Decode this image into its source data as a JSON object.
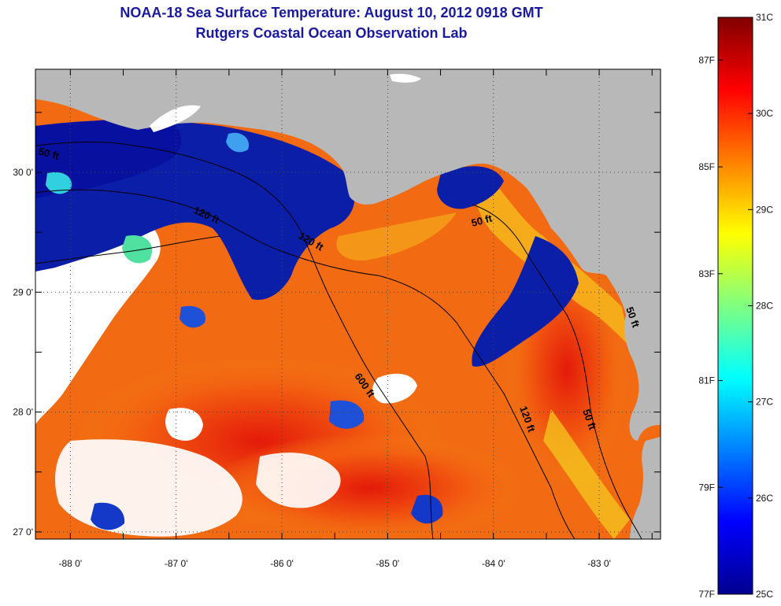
{
  "titles": {
    "line1": "NOAA-18 Sea Surface Temperature:  August 10, 2012 0918 GMT",
    "line2": "Rutgers Coastal Ocean Observation Lab"
  },
  "map": {
    "lon_range": [
      -88.33,
      -82.42
    ],
    "lat_range": [
      26.94,
      30.86
    ],
    "lon_ticks": [
      {
        "value": -88,
        "label": "-88 0'"
      },
      {
        "value": -87,
        "label": "-87 0'"
      },
      {
        "value": -86,
        "label": "-86 0'"
      },
      {
        "value": -85,
        "label": "-85 0'"
      },
      {
        "value": -84,
        "label": "-84 0'"
      },
      {
        "value": -83,
        "label": "-83 0'"
      }
    ],
    "lat_ticks": [
      {
        "value": 27,
        "label": "27 0'"
      },
      {
        "value": 28,
        "label": "28 0'"
      },
      {
        "value": 29,
        "label": "29 0'"
      },
      {
        "value": 30,
        "label": "30 0'"
      }
    ],
    "contour_labels": [
      "50 ft",
      "120 ft",
      "600 ft",
      "50 ft",
      "120 ft",
      "50 ft",
      "50 ft",
      "120 ft"
    ],
    "colors": {
      "land": "#b8b8b8",
      "cloud": "#ffffff",
      "contour": "#000000",
      "grid": "#555555"
    }
  },
  "colorbar": {
    "celsius_ticks": [
      "31C",
      "30C",
      "29C",
      "28C",
      "27C",
      "26C",
      "25C"
    ],
    "fahrenheit_ticks": [
      "87F",
      "85F",
      "83F",
      "81F",
      "79F",
      "77F"
    ],
    "celsius_values": [
      31,
      30,
      29,
      28,
      27,
      26,
      25
    ],
    "fahrenheit_values": [
      87,
      85,
      83,
      81,
      79,
      77
    ],
    "stops": [
      "#00008f",
      "#0000ff",
      "#0080ff",
      "#00ffff",
      "#80ff80",
      "#ffff00",
      "#ff8000",
      "#ff0000",
      "#800000"
    ]
  }
}
